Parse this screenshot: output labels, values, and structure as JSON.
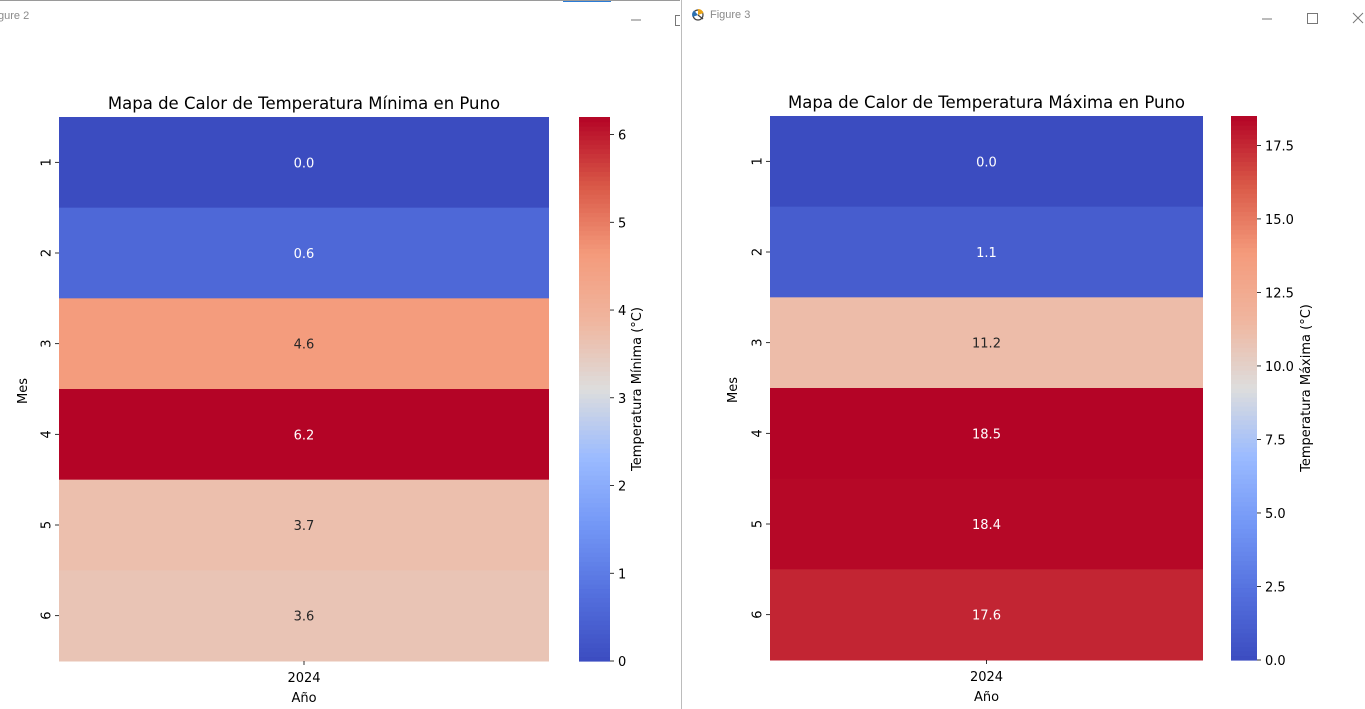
{
  "windows": [
    {
      "title": "gure 2",
      "chart_data": {
        "type": "heatmap",
        "title": "Mapa de Calor de Temperatura Mínima en Puno",
        "xlabel": "Año",
        "ylabel": "Mes",
        "x_categories": [
          "2024"
        ],
        "y_categories": [
          "1",
          "2",
          "3",
          "4",
          "5",
          "6"
        ],
        "values": [
          [
            0.0
          ],
          [
            0.6
          ],
          [
            4.6
          ],
          [
            6.2
          ],
          [
            3.7
          ],
          [
            3.6
          ]
        ],
        "value_labels": [
          "0.0",
          "0.6",
          "4.6",
          "6.2",
          "3.7",
          "3.6"
        ],
        "colorbar": {
          "label": "Temperatura Mínima (°C)",
          "min": 0,
          "max": 6.2,
          "ticks": [
            0,
            1,
            2,
            3,
            4,
            5,
            6
          ],
          "tick_labels": [
            "0",
            "1",
            "2",
            "3",
            "4",
            "5",
            "6"
          ]
        },
        "colormap": "coolwarm"
      }
    },
    {
      "title": "Figure 3",
      "chart_data": {
        "type": "heatmap",
        "title": "Mapa de Calor de Temperatura Máxima en Puno",
        "xlabel": "Año",
        "ylabel": "Mes",
        "x_categories": [
          "2024"
        ],
        "y_categories": [
          "1",
          "2",
          "3",
          "4",
          "5",
          "6"
        ],
        "values": [
          [
            0.0
          ],
          [
            1.1
          ],
          [
            11.2
          ],
          [
            18.5
          ],
          [
            18.4
          ],
          [
            17.6
          ]
        ],
        "value_labels": [
          "0.0",
          "1.1",
          "11.2",
          "18.5",
          "18.4",
          "17.6"
        ],
        "colorbar": {
          "label": "Temperatura Máxima (°C)",
          "min": 0,
          "max": 18.5,
          "ticks": [
            0,
            2.5,
            5,
            7.5,
            10,
            12.5,
            15,
            17.5
          ],
          "tick_labels": [
            "0.0",
            "2.5",
            "5.0",
            "7.5",
            "10.0",
            "12.5",
            "15.0",
            "17.5"
          ]
        },
        "colormap": "coolwarm"
      }
    }
  ],
  "colors": {
    "coolwarm_low": "#3b4cc0",
    "coolwarm_mid": "#dddddd",
    "coolwarm_high": "#b40426",
    "focus_accent": "#2a7bd6"
  }
}
